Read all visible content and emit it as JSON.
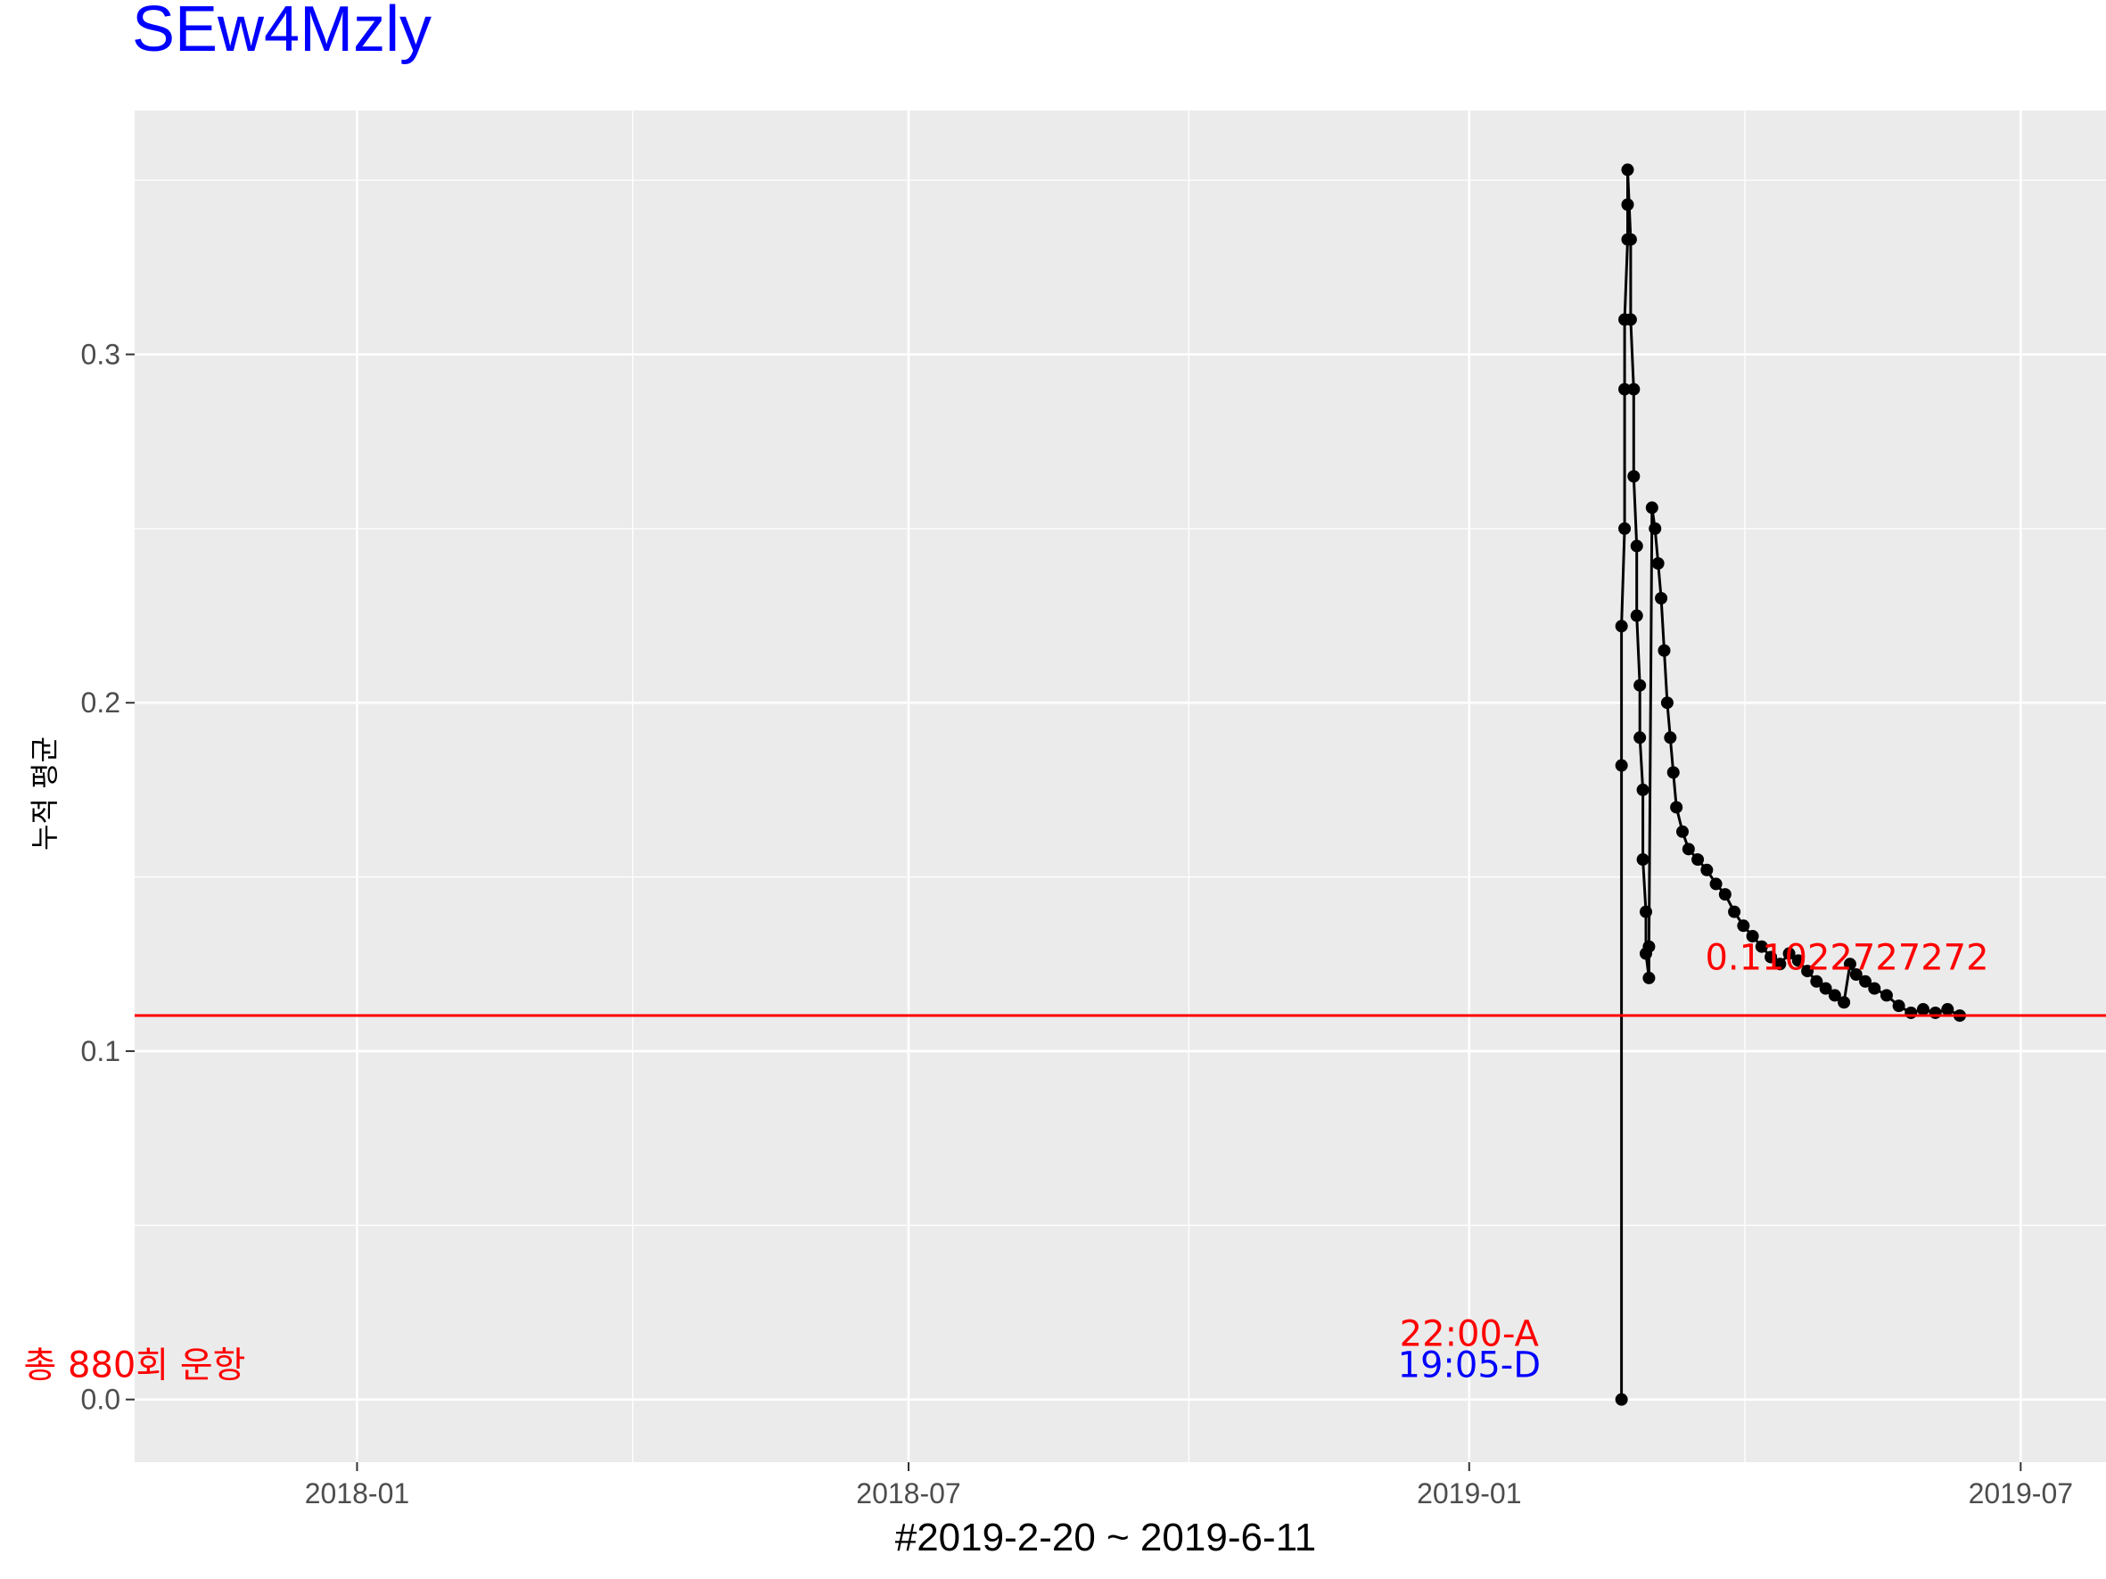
{
  "title": "SEw4Mzly",
  "chart_data": {
    "type": "line",
    "title": "SEw4Mzly",
    "xlabel": "#2019-2-20 ~ 2019-6-11",
    "ylabel": "누적 평균",
    "xlim": [
      "2017-10-20",
      "2019-07-29"
    ],
    "ylim": [
      -0.018,
      0.37
    ],
    "x_ticks": [
      "2018-01",
      "2018-07",
      "2019-01",
      "2019-07"
    ],
    "y_ticks": [
      "0.0",
      "0.1",
      "0.2",
      "0.3"
    ],
    "grid": true,
    "series": [
      {
        "color": "#000000",
        "points": [
          [
            "2019-02-20",
            0.0
          ],
          [
            "2019-02-20",
            0.133
          ],
          [
            "2019-02-20",
            0.182
          ],
          [
            "2019-02-20",
            0.222
          ],
          [
            "2019-02-21",
            0.25
          ],
          [
            "2019-02-21",
            0.29
          ],
          [
            "2019-02-21",
            0.31
          ],
          [
            "2019-02-22",
            0.333
          ],
          [
            "2019-02-22",
            0.343
          ],
          [
            "2019-02-22",
            0.353
          ],
          [
            "2019-02-23",
            0.333
          ],
          [
            "2019-02-23",
            0.31
          ],
          [
            "2019-02-24",
            0.29
          ],
          [
            "2019-02-24",
            0.265
          ],
          [
            "2019-02-25",
            0.245
          ],
          [
            "2019-02-25",
            0.225
          ],
          [
            "2019-02-26",
            0.205
          ],
          [
            "2019-02-26",
            0.19
          ],
          [
            "2019-02-27",
            0.175
          ],
          [
            "2019-02-27",
            0.155
          ],
          [
            "2019-02-28",
            0.14
          ],
          [
            "2019-02-28",
            0.128
          ],
          [
            "2019-03-01",
            0.121
          ],
          [
            "2019-03-01",
            0.13
          ],
          [
            "2019-03-02",
            0.256
          ],
          [
            "2019-03-03",
            0.25
          ],
          [
            "2019-03-04",
            0.24
          ],
          [
            "2019-03-05",
            0.23
          ],
          [
            "2019-03-06",
            0.215
          ],
          [
            "2019-03-07",
            0.2
          ],
          [
            "2019-03-08",
            0.19
          ],
          [
            "2019-03-09",
            0.18
          ],
          [
            "2019-03-10",
            0.17
          ],
          [
            "2019-03-12",
            0.163
          ],
          [
            "2019-03-14",
            0.158
          ],
          [
            "2019-03-17",
            0.155
          ],
          [
            "2019-03-20",
            0.152
          ],
          [
            "2019-03-23",
            0.148
          ],
          [
            "2019-03-26",
            0.145
          ],
          [
            "2019-03-29",
            0.14
          ],
          [
            "2019-04-01",
            0.136
          ],
          [
            "2019-04-04",
            0.133
          ],
          [
            "2019-04-07",
            0.13
          ],
          [
            "2019-04-10",
            0.127
          ],
          [
            "2019-04-13",
            0.125
          ],
          [
            "2019-04-16",
            0.128
          ],
          [
            "2019-04-19",
            0.126
          ],
          [
            "2019-04-22",
            0.123
          ],
          [
            "2019-04-25",
            0.12
          ],
          [
            "2019-04-28",
            0.118
          ],
          [
            "2019-05-01",
            0.116
          ],
          [
            "2019-05-04",
            0.114
          ],
          [
            "2019-05-06",
            0.125
          ],
          [
            "2019-05-08",
            0.122
          ],
          [
            "2019-05-11",
            0.12
          ],
          [
            "2019-05-14",
            0.118
          ],
          [
            "2019-05-18",
            0.116
          ],
          [
            "2019-05-22",
            0.113
          ],
          [
            "2019-05-26",
            0.111
          ],
          [
            "2019-05-30",
            0.112
          ],
          [
            "2019-06-03",
            0.111
          ],
          [
            "2019-06-07",
            0.112
          ],
          [
            "2019-06-11",
            0.1102
          ]
        ]
      }
    ],
    "hline": {
      "y": 0.11022727272,
      "color": "#ff0000"
    },
    "annotations": [
      {
        "text": "0.11022727272",
        "x": "2019-05-05",
        "y": 0.127,
        "color": "#ff0000"
      },
      {
        "text": "22:00-A",
        "x": "2019-01-01",
        "y": 0.019,
        "color": "#ff0000"
      },
      {
        "text": "19:05-D",
        "x": "2019-01-01",
        "y": 0.01,
        "color": "#0000ff"
      },
      {
        "text": "총 880회 운항",
        "x": "2017-10-20",
        "y": 0.01,
        "color": "#ff0000"
      }
    ]
  }
}
